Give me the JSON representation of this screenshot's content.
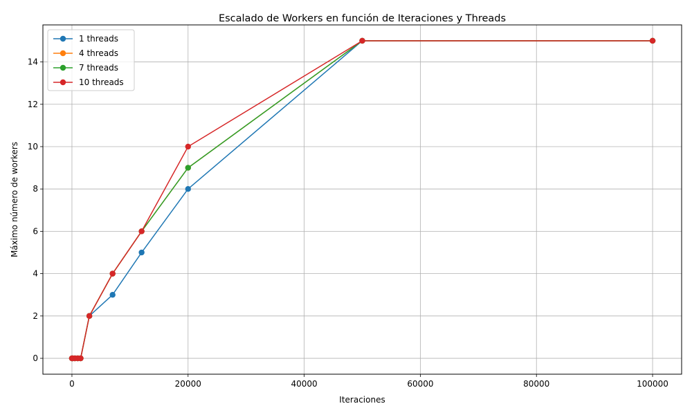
{
  "chart_data": {
    "type": "line",
    "title": "Escalado de Workers en función de Iteraciones y Threads",
    "xlabel": "Iteraciones",
    "ylabel": "Máximo número de workers",
    "xlim": [
      -5000,
      105000
    ],
    "ylim": [
      -0.75,
      15.75
    ],
    "xticks": [
      0,
      20000,
      40000,
      60000,
      80000,
      100000
    ],
    "yticks": [
      0,
      2,
      4,
      6,
      8,
      10,
      12,
      14
    ],
    "grid": true,
    "legend_position": "top-left",
    "x": [
      0,
      100,
      500,
      1000,
      1500,
      3000,
      7000,
      12000,
      20000,
      50000,
      100000
    ],
    "series": [
      {
        "name": "1 threads",
        "color": "#1f77b4",
        "values": [
          0,
          0,
          0,
          0,
          0,
          2,
          3,
          5,
          8,
          15,
          15
        ]
      },
      {
        "name": "4 threads",
        "color": "#ff7f0e",
        "values": [
          0,
          0,
          0,
          0,
          0,
          2,
          4,
          6,
          9,
          15,
          15
        ]
      },
      {
        "name": "7 threads",
        "color": "#2ca02c",
        "values": [
          0,
          0,
          0,
          0,
          0,
          2,
          4,
          6,
          9,
          15,
          15
        ]
      },
      {
        "name": "10 threads",
        "color": "#d62728",
        "values": [
          0,
          0,
          0,
          0,
          0,
          2,
          4,
          6,
          10,
          15,
          15
        ]
      }
    ]
  }
}
